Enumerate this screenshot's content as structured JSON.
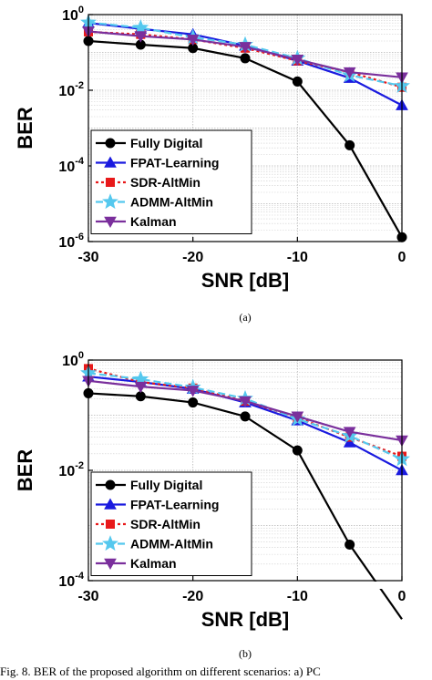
{
  "caption": "Fig. 8.   BER of the proposed algorithm on different scenarios: a) PC",
  "series_style": [
    {
      "color": "#000000",
      "marker": "circle",
      "dash": ""
    },
    {
      "color": "#1a1adf",
      "marker": "triangle-up",
      "dash": ""
    },
    {
      "color": "#e8191a",
      "marker": "square",
      "dash": "3,3"
    },
    {
      "color": "#55c8ee",
      "marker": "star",
      "dash": "8,4"
    },
    {
      "color": "#7a2f9c",
      "marker": "triangle-down",
      "dash": ""
    }
  ],
  "chart_data": [
    {
      "type": "line",
      "subplot_label": "(a)",
      "xlabel": "SNR [dB]",
      "ylabel": "BER",
      "y_scale": "log",
      "xlim": [
        -30,
        0
      ],
      "ylim": [
        1e-06,
        1
      ],
      "x_ticks": [
        -30,
        -20,
        -10,
        0
      ],
      "y_ticks": [
        {
          "base": "10",
          "exp": "0"
        },
        {
          "base": "10",
          "exp": "-2"
        },
        {
          "base": "10",
          "exp": "-4"
        },
        {
          "base": "10",
          "exp": "-6"
        }
      ],
      "grid": true,
      "legend_position": "lower-left",
      "x": [
        -30,
        -25,
        -20,
        -15,
        -10,
        -5,
        0
      ],
      "series": [
        {
          "name": "Fully Digital",
          "values": [
            0.2,
            0.16,
            0.13,
            0.07,
            0.017,
            0.00035,
            1.3e-06
          ]
        },
        {
          "name": "FPAT-Learning",
          "values": [
            0.6,
            0.42,
            0.3,
            0.15,
            0.06,
            0.021,
            0.004
          ]
        },
        {
          "name": "SDR-AltMin",
          "values": [
            0.35,
            0.3,
            0.22,
            0.13,
            0.06,
            0.03,
            0.012
          ]
        },
        {
          "name": "ADMM-AltMin",
          "values": [
            0.62,
            0.45,
            0.25,
            0.16,
            0.07,
            0.025,
            0.013
          ]
        },
        {
          "name": "Kalman",
          "values": [
            0.36,
            0.27,
            0.22,
            0.14,
            0.065,
            0.03,
            0.022
          ]
        }
      ]
    },
    {
      "type": "line",
      "subplot_label": "(b)",
      "xlabel": "SNR [dB]",
      "ylabel": "BER",
      "y_scale": "log",
      "xlim": [
        -30,
        0
      ],
      "ylim": [
        0.0001,
        1
      ],
      "x_ticks": [
        -30,
        -20,
        -10,
        0
      ],
      "y_ticks": [
        {
          "base": "10",
          "exp": "0"
        },
        {
          "base": "10",
          "exp": "-2"
        },
        {
          "base": "10",
          "exp": "-4"
        }
      ],
      "grid": true,
      "legend_position": "lower-left",
      "x": [
        -30,
        -25,
        -20,
        -15,
        -10,
        -5,
        0
      ],
      "series": [
        {
          "name": "Fully Digital",
          "values": [
            0.25,
            0.22,
            0.17,
            0.095,
            0.023,
            0.00045,
            2e-05
          ]
        },
        {
          "name": "FPAT-Learning",
          "values": [
            0.5,
            0.4,
            0.3,
            0.17,
            0.08,
            0.032,
            0.01
          ]
        },
        {
          "name": "SDR-AltMin",
          "values": [
            0.7,
            0.4,
            0.31,
            0.18,
            0.09,
            0.04,
            0.018
          ]
        },
        {
          "name": "ADMM-AltMin",
          "values": [
            0.58,
            0.45,
            0.32,
            0.2,
            0.085,
            0.042,
            0.016
          ]
        },
        {
          "name": "Kalman",
          "values": [
            0.42,
            0.33,
            0.28,
            0.18,
            0.095,
            0.05,
            0.035
          ]
        }
      ]
    }
  ]
}
